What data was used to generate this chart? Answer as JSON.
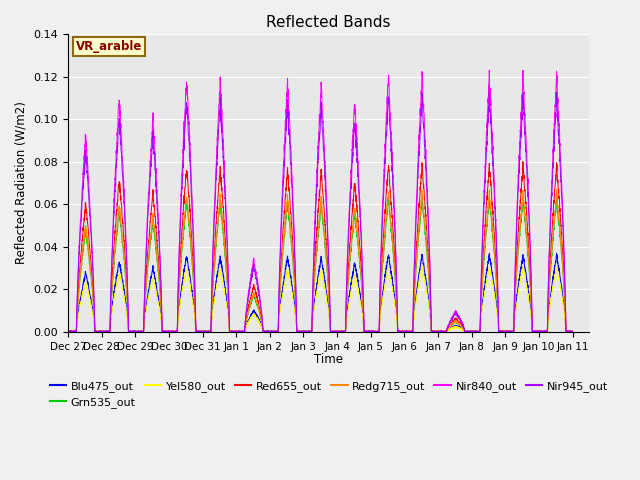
{
  "title": "Reflected Bands",
  "xlabel": "Time",
  "ylabel": "Reflected Radiation (W/m2)",
  "ylim": [
    0,
    0.14
  ],
  "figsize": [
    6.4,
    4.8
  ],
  "dpi": 100,
  "annotation_text": "VR_arable",
  "annotation_bg": "#ffffcc",
  "annotation_border": "#8B6914",
  "fig_bg": "#f0f0f0",
  "ax_bg": "#e8e8e8",
  "tick_labels": [
    "Dec 27",
    "Dec 28",
    "Dec 29",
    "Dec 30",
    "Dec 31",
    "Jan 1",
    "Jan 2",
    "Jan 3",
    "Jan 4",
    "Jan 5",
    "Jan 6",
    "Jan 7",
    "Jan 8",
    "Jan 9",
    "Jan 10",
    "Jan 11"
  ],
  "series": [
    {
      "name": "Blu475_out",
      "color": "#0000ff",
      "peak_scale": 0.036
    },
    {
      "name": "Grn535_out",
      "color": "#00cc00",
      "peak_scale": 0.062
    },
    {
      "name": "Yel580_out",
      "color": "#ffff00",
      "peak_scale": 0.03
    },
    {
      "name": "Red655_out",
      "color": "#ff0000",
      "peak_scale": 0.078
    },
    {
      "name": "Redg715_out",
      "color": "#ff8800",
      "peak_scale": 0.065
    },
    {
      "name": "Nir840_out",
      "color": "#ff00ff",
      "peak_scale": 0.12
    },
    {
      "name": "Nir945_out",
      "color": "#aa00ff",
      "peak_scale": 0.11
    }
  ],
  "day_factors": [
    0.77,
    0.92,
    0.84,
    1.0,
    0.98,
    0.28,
    0.97,
    0.96,
    0.9,
    1.0,
    1.0,
    0.08,
    1.0,
    1.0,
    1.0
  ],
  "pts_per_day": 200
}
